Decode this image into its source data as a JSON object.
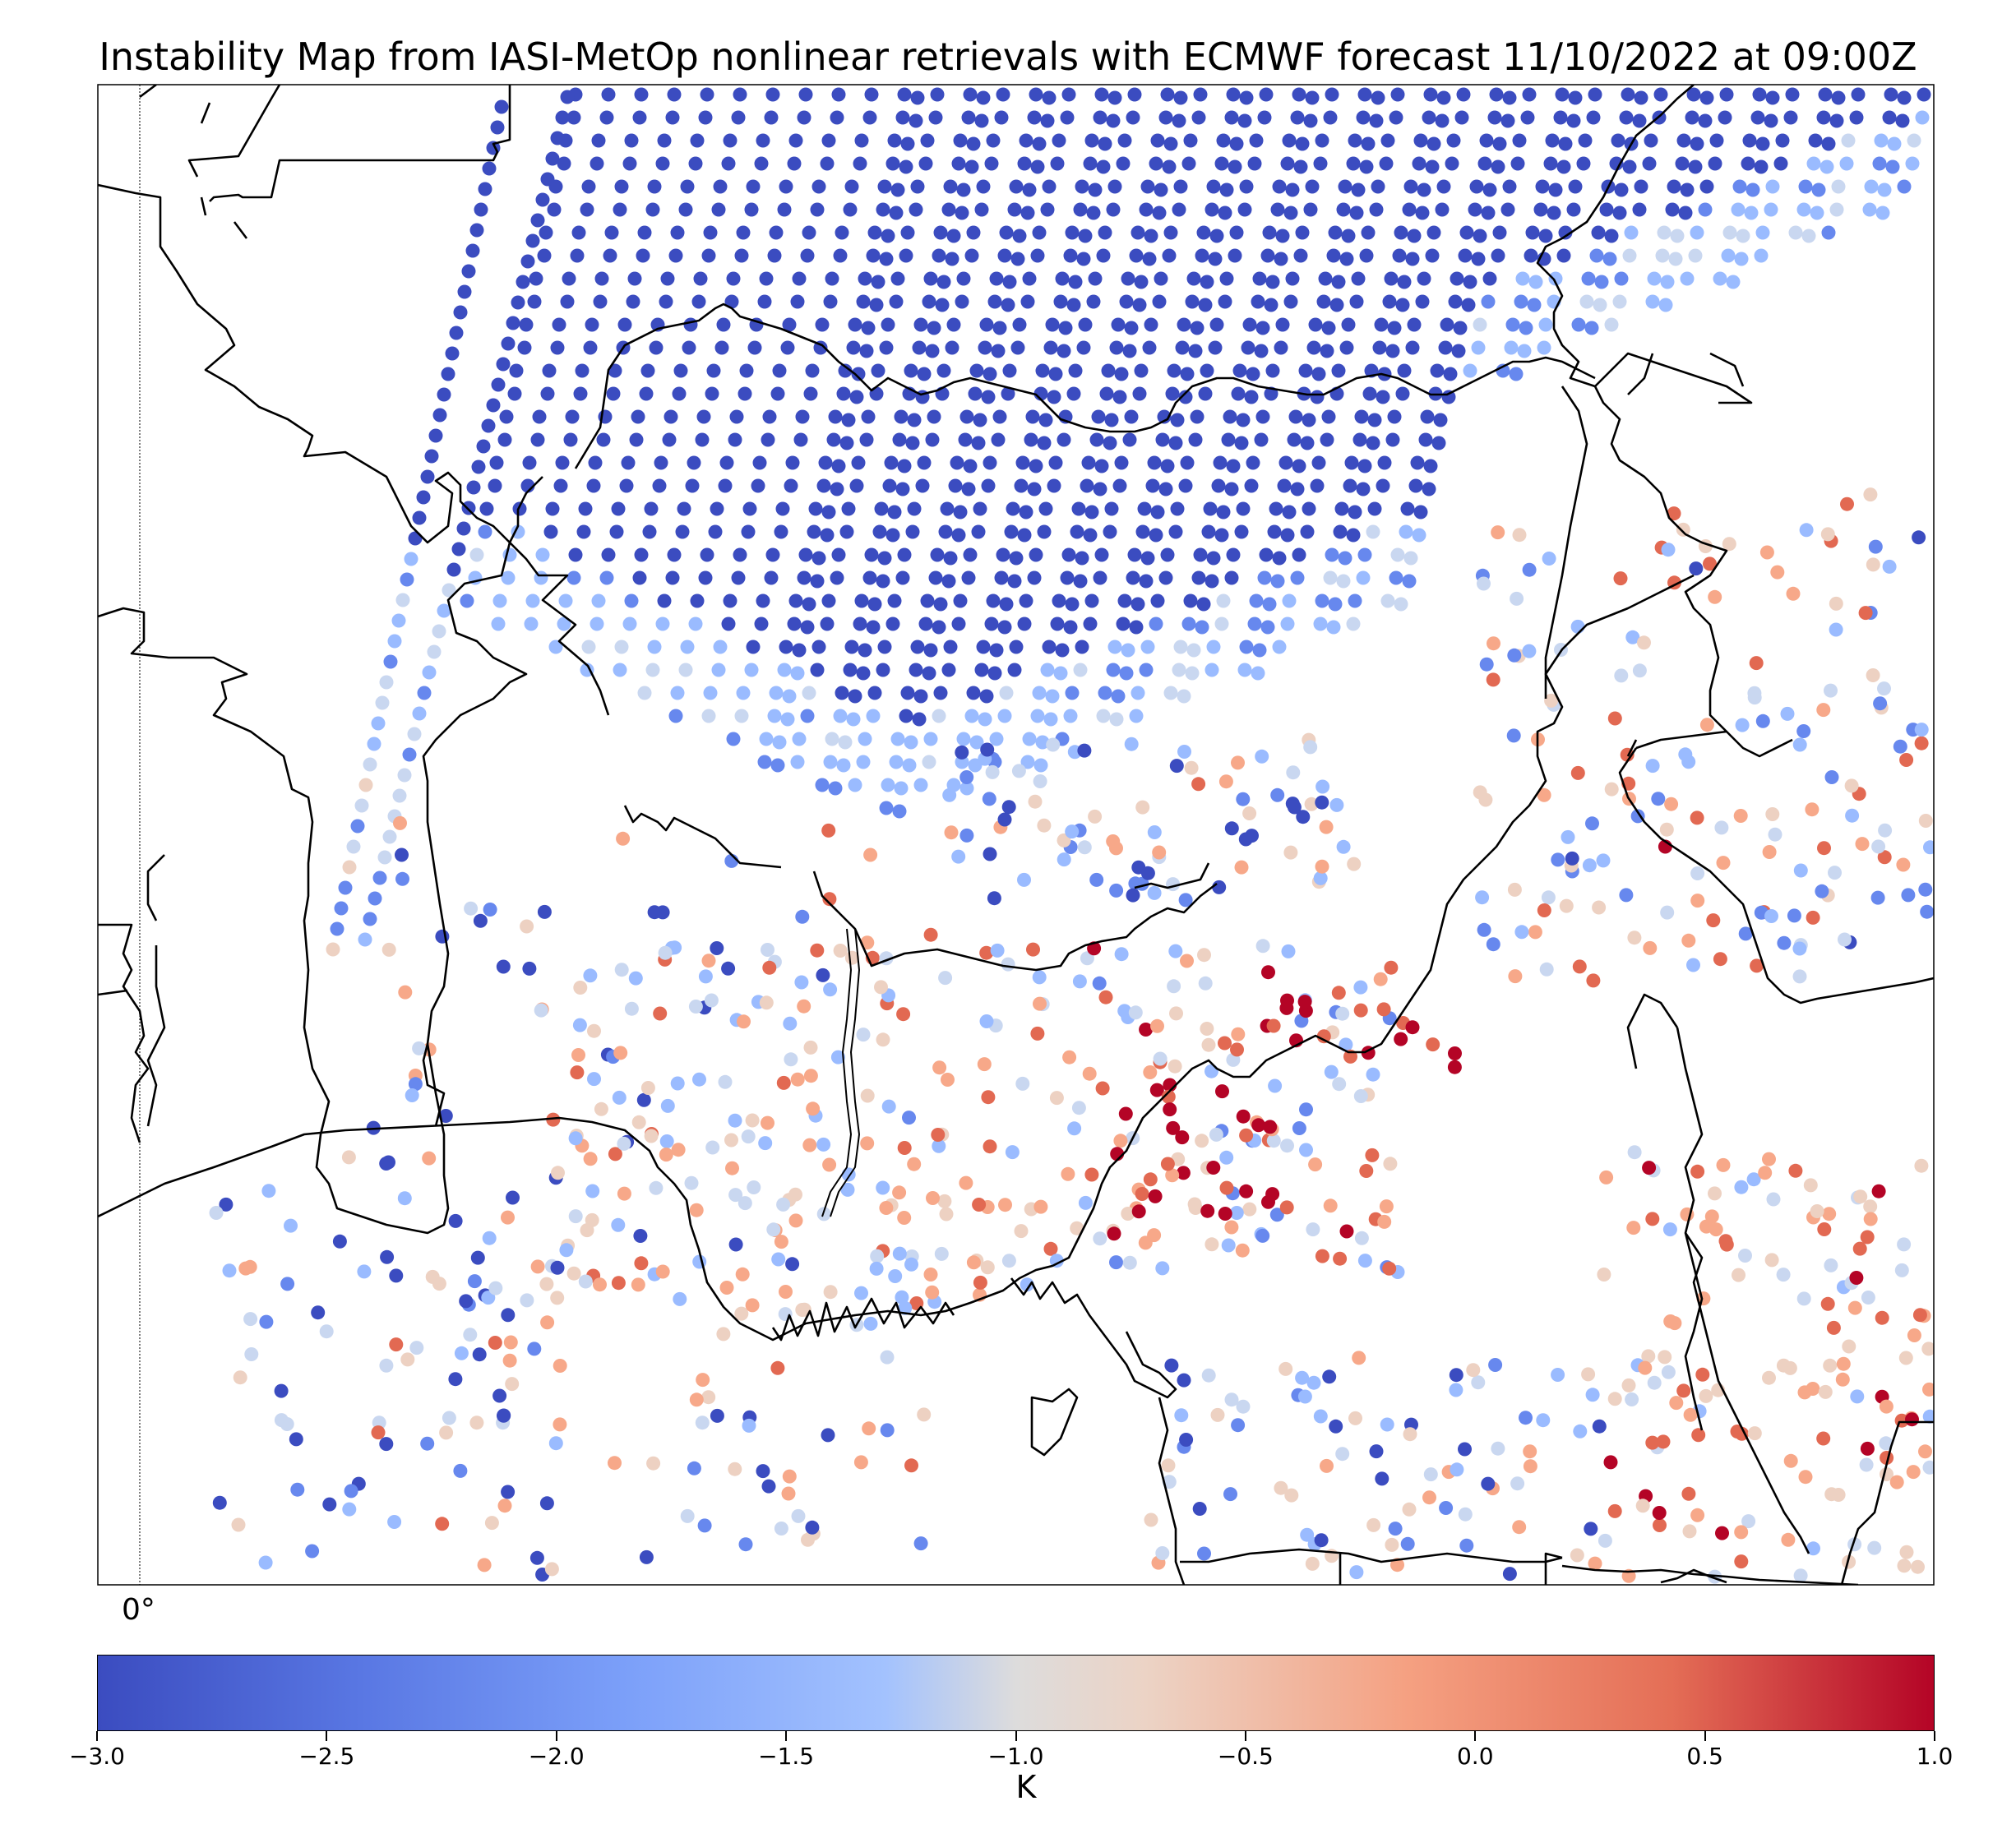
{
  "title": "Instability Map from IASI-MetOp nonlinear retrievals with ECMWF forecast 11/10/2022 at 09:00Z",
  "map": {
    "meridian_label": "0°",
    "stops": [
      "#3b4cc0",
      "#6788ee",
      "#9abbff",
      "#c9d7f0",
      "#edd1c2",
      "#f7a889",
      "#e26952",
      "#b40426"
    ]
  },
  "colorbar": {
    "label": "K",
    "min": -3.0,
    "max": 1.0,
    "ticks": [
      "−3.0",
      "−2.5",
      "−2.0",
      "−1.5",
      "−1.0",
      "−0.5",
      "0.0",
      "0.5",
      "1.0"
    ],
    "colormap": "coolwarm"
  }
}
